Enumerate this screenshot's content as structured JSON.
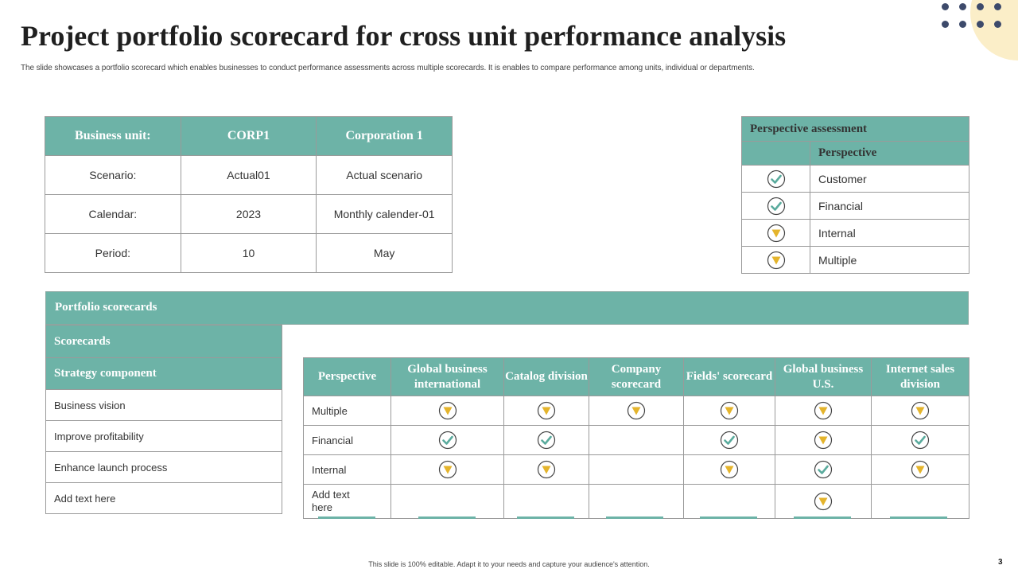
{
  "header": {
    "title": "Project portfolio scorecard for cross unit performance analysis",
    "subtitle": "The slide showcases a portfolio scorecard which enables businesses to conduct performance assessments across multiple scorecards. It is enables to compare performance among units, individual or departments."
  },
  "business_unit": {
    "header": [
      "Business unit:",
      "CORP1",
      "Corporation 1"
    ],
    "rows": [
      [
        "Scenario:",
        "Actual01",
        "Actual scenario"
      ],
      [
        "Calendar:",
        "2023",
        "Monthly calender-01"
      ],
      [
        "Period:",
        "10",
        "May"
      ]
    ]
  },
  "perspective_assessment": {
    "caption": "Perspective assessment",
    "column": "Perspective",
    "rows": [
      {
        "label": "Customer",
        "status": "check-icon"
      },
      {
        "label": "Financial",
        "status": "check-icon"
      },
      {
        "label": "Internal",
        "status": "triangle-down-icon"
      },
      {
        "label": "Multiple",
        "status": "triangle-down-icon"
      }
    ]
  },
  "portfolio": {
    "title": "Portfolio scorecards",
    "scorecards_label": "Scorecards",
    "strategy_label": "Strategy component",
    "strategy_items": [
      "Business vision",
      "Improve  profitability",
      "Enhance launch process",
      "Add text here"
    ]
  },
  "matrix": {
    "columns": [
      "Perspective",
      "Global business international",
      "Catalog division",
      "Company scorecard",
      "Fields' scorecard",
      "Global business U.S.",
      "Internet sales division"
    ],
    "rows": [
      {
        "label": "Multiple",
        "cells": [
          "down",
          "down",
          "down",
          "down",
          "down",
          "down"
        ]
      },
      {
        "label": "Financial",
        "cells": [
          "check",
          "check",
          "",
          "check",
          "down",
          "check"
        ]
      },
      {
        "label": "Internal",
        "cells": [
          "down",
          "down",
          "",
          "down",
          "check",
          "down"
        ]
      },
      {
        "label": "Add text here",
        "cells": [
          "",
          "",
          "",
          "",
          "down",
          ""
        ]
      }
    ]
  },
  "colors": {
    "accent": "#6db3a7",
    "check": "#5aab9d",
    "warning": "#e4b42c"
  },
  "footer": {
    "note": "This slide is 100% editable. Adapt it to your needs and capture your audience's attention.",
    "page_number": "3"
  }
}
